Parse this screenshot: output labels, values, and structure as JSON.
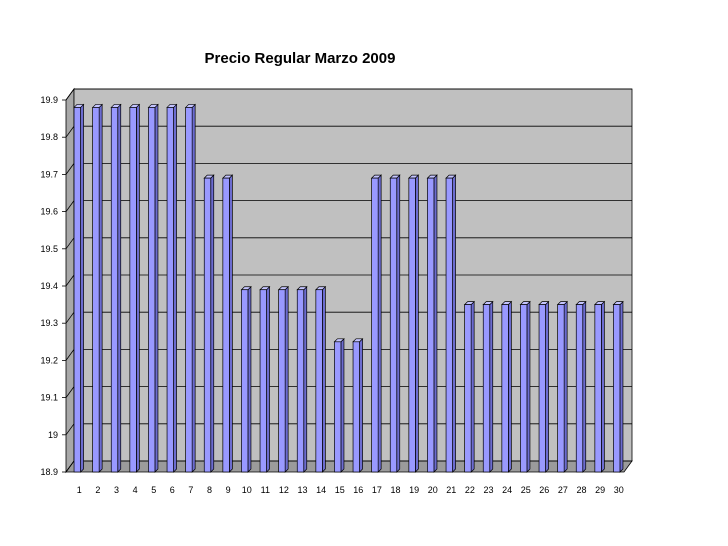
{
  "chart_data": {
    "type": "bar",
    "title": "Precio Regular Marzo 2009",
    "xlabel": "",
    "ylabel": "",
    "ylim": [
      18.9,
      19.9
    ],
    "yticks": [
      "18.9",
      "19",
      "19.1",
      "19.2",
      "19.3",
      "19.4",
      "19.5",
      "19.6",
      "19.7",
      "19.8",
      "19.9"
    ],
    "categories": [
      "1",
      "2",
      "3",
      "4",
      "5",
      "6",
      "7",
      "8",
      "9",
      "10",
      "11",
      "12",
      "13",
      "14",
      "15",
      "16",
      "17",
      "18",
      "19",
      "20",
      "21",
      "22",
      "23",
      "24",
      "25",
      "26",
      "27",
      "28",
      "29",
      "30"
    ],
    "values": [
      19.88,
      19.88,
      19.88,
      19.88,
      19.88,
      19.88,
      19.88,
      19.69,
      19.69,
      19.39,
      19.39,
      19.39,
      19.39,
      19.39,
      19.25,
      19.25,
      19.69,
      19.69,
      19.69,
      19.69,
      19.69,
      19.35,
      19.35,
      19.35,
      19.35,
      19.35,
      19.35,
      19.35,
      19.35,
      19.35
    ],
    "grid": true,
    "legend": "none",
    "colors": {
      "bar_front": "#9999ff",
      "bar_side": "#6c6cd0",
      "bar_top": "#c4c4ff",
      "bar_stroke": "#000000",
      "plot_back": "#c0c0c0",
      "plot_floor": "#9b9b9b",
      "plot_side": "#a8a8a8",
      "grid": "#000000"
    }
  }
}
